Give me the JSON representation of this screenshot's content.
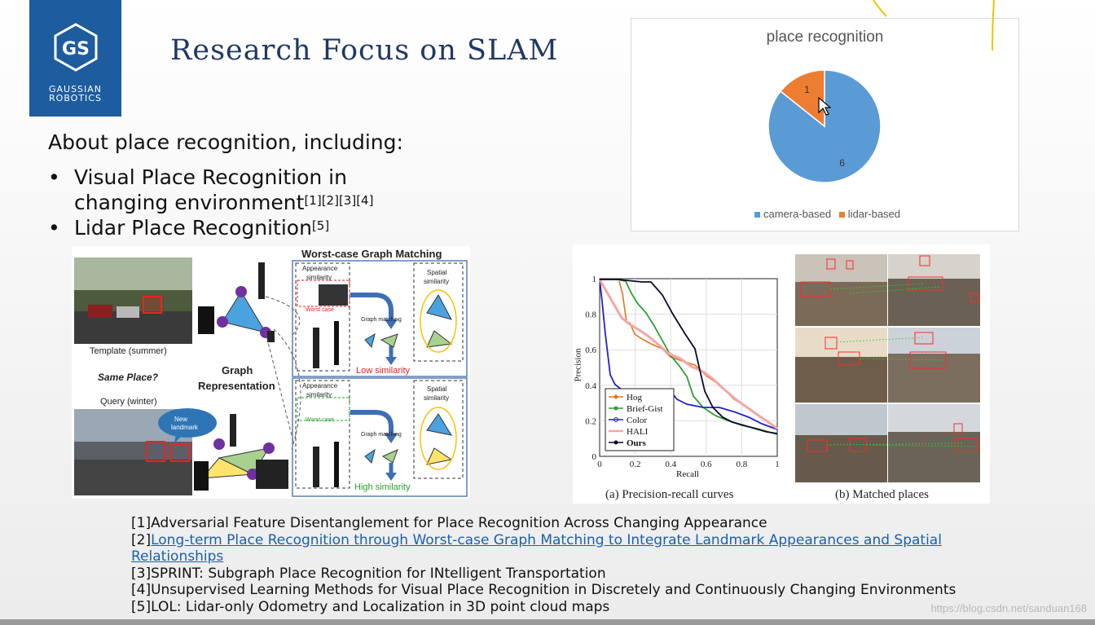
{
  "logo": {
    "line1": "GAUSSIAN",
    "line2": "ROBOTICS"
  },
  "slide": {
    "title": "Research Focus on SLAM",
    "intro": "About place recognition, including:",
    "bullets": [
      {
        "line1": "Visual Place Recognition in",
        "line2": "changing environment",
        "sup": "[1][2][3][4]"
      },
      {
        "line1": "Lidar Place Recognition",
        "sup": "[5]"
      }
    ]
  },
  "chart_data": {
    "type": "pie",
    "title": "place recognition",
    "categories": [
      "camera-based",
      "lidar-based"
    ],
    "values": [
      6,
      1
    ],
    "colors": [
      "#5b9bd5",
      "#ed7d31"
    ],
    "legend_position": "bottom"
  },
  "graph_figure": {
    "header": "Worst-case Graph Matching",
    "template_label": "Template (summer)",
    "query_label": "Query (winter)",
    "same_place": "Same Place?",
    "graph_rep_1": "Graph",
    "graph_rep_2": "Representation",
    "appearance_1": "Appearance",
    "similarity": "similarity",
    "spatial": "Spatial",
    "worst_case": "Worst case",
    "graph_matching": "Graph matching",
    "low_similarity": "Low similarity",
    "high_similarity": "High similarity",
    "new_1": "New",
    "new_2": "landmark"
  },
  "pr_chart": {
    "xlabel": "Recall",
    "ylabel": "Precision",
    "x_ticks": [
      "0",
      "0.2",
      "0.4",
      "0.6",
      "0.8",
      "1"
    ],
    "y_ticks": [
      "0",
      "0.2",
      "0.4",
      "0.6",
      "0.8",
      "1"
    ],
    "legend": [
      "Hog",
      "Brief-Gist",
      "Color",
      "HALI",
      "Ours"
    ],
    "caption_a": "(a) Precision-recall curves",
    "caption_b": "(b) Matched places"
  },
  "references": {
    "r1": "[1]Adversarial Feature Disentanglement for Place Recognition Across Changing Appearance",
    "r2_prefix": "[2]",
    "r2_link": "Long-term Place Recognition through Worst-case Graph Matching to Integrate Landmark Appearances and Spatial Relationships",
    "r3": "[3]SPRINT: Subgraph Place Recognition for INtelligent Transportation",
    "r4": "[4]Unsupervised Learning Methods for Visual Place Recognition in Discretely and Continuously Changing Environments",
    "r5": "[5]LOL: Lidar-only Odometry and Localization in 3D point cloud maps"
  },
  "watermark": "https://blog.csdn.net/sanduan168"
}
